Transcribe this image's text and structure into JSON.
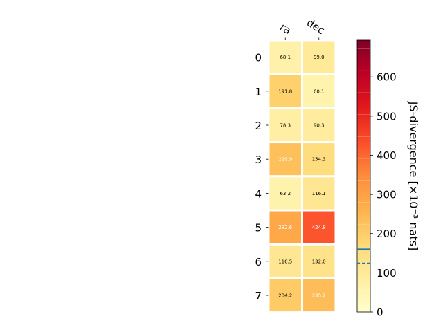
{
  "chart_data": {
    "type": "heatmap",
    "title": "",
    "x_tick_labels": [
      "ra",
      "dec"
    ],
    "y_tick_labels": [
      "0",
      "1",
      "2",
      "3",
      "4",
      "5",
      "6",
      "7"
    ],
    "values": [
      [
        68.1,
        99.0
      ],
      [
        191.8,
        60.1
      ],
      [
        78.3,
        90.3
      ],
      [
        229.9,
        154.3
      ],
      [
        63.2,
        116.1
      ],
      [
        282.6,
        424.8
      ],
      [
        116.5,
        132.0
      ],
      [
        204.2,
        235.2
      ]
    ],
    "cell_labels": [
      [
        "68.1",
        "99.0"
      ],
      [
        "191.8",
        "60.1"
      ],
      [
        "78.3",
        "90.3"
      ],
      [
        "229.9",
        "154.3"
      ],
      [
        "63.2",
        "116.1"
      ],
      [
        "282.6",
        "424.8"
      ],
      [
        "116.5",
        "132.0"
      ],
      [
        "204.2",
        "235.2"
      ]
    ],
    "colorscale": "YlOrRd",
    "colorbar": {
      "label": "JS-divergence [×10⁻³ nats]",
      "range": [
        0,
        694
      ],
      "ticks": [
        0,
        100,
        200,
        300,
        400,
        500,
        600
      ],
      "tick_labels": [
        "0",
        "100",
        "200",
        "300",
        "400",
        "500",
        "600"
      ],
      "markers": [
        {
          "value": 160,
          "style": "solid",
          "color": "#1f77b4"
        },
        {
          "value": 124,
          "style": "dashed",
          "color": "#1f77b4"
        }
      ]
    },
    "grid": false
  }
}
